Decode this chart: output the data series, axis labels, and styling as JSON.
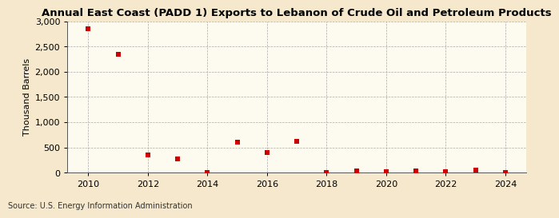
{
  "title": "Annual East Coast (PADD 1) Exports to Lebanon of Crude Oil and Petroleum Products",
  "ylabel": "Thousand Barrels",
  "source": "Source: U.S. Energy Information Administration",
  "background_color": "#f5e8cc",
  "plot_background_color": "#fdfaf0",
  "years": [
    2010,
    2011,
    2012,
    2013,
    2014,
    2015,
    2016,
    2017,
    2018,
    2019,
    2020,
    2021,
    2022,
    2023,
    2024
  ],
  "values": [
    2850,
    2350,
    350,
    270,
    10,
    610,
    400,
    620,
    10,
    30,
    20,
    40,
    20,
    50,
    10
  ],
  "marker_color": "#cc0000",
  "ylim": [
    0,
    3000
  ],
  "yticks": [
    0,
    500,
    1000,
    1500,
    2000,
    2500,
    3000
  ],
  "xlim": [
    2009.3,
    2024.7
  ],
  "xticks": [
    2010,
    2012,
    2014,
    2016,
    2018,
    2020,
    2022,
    2024
  ],
  "title_fontsize": 9.5,
  "axis_fontsize": 8,
  "source_fontsize": 7,
  "marker_size": 5
}
